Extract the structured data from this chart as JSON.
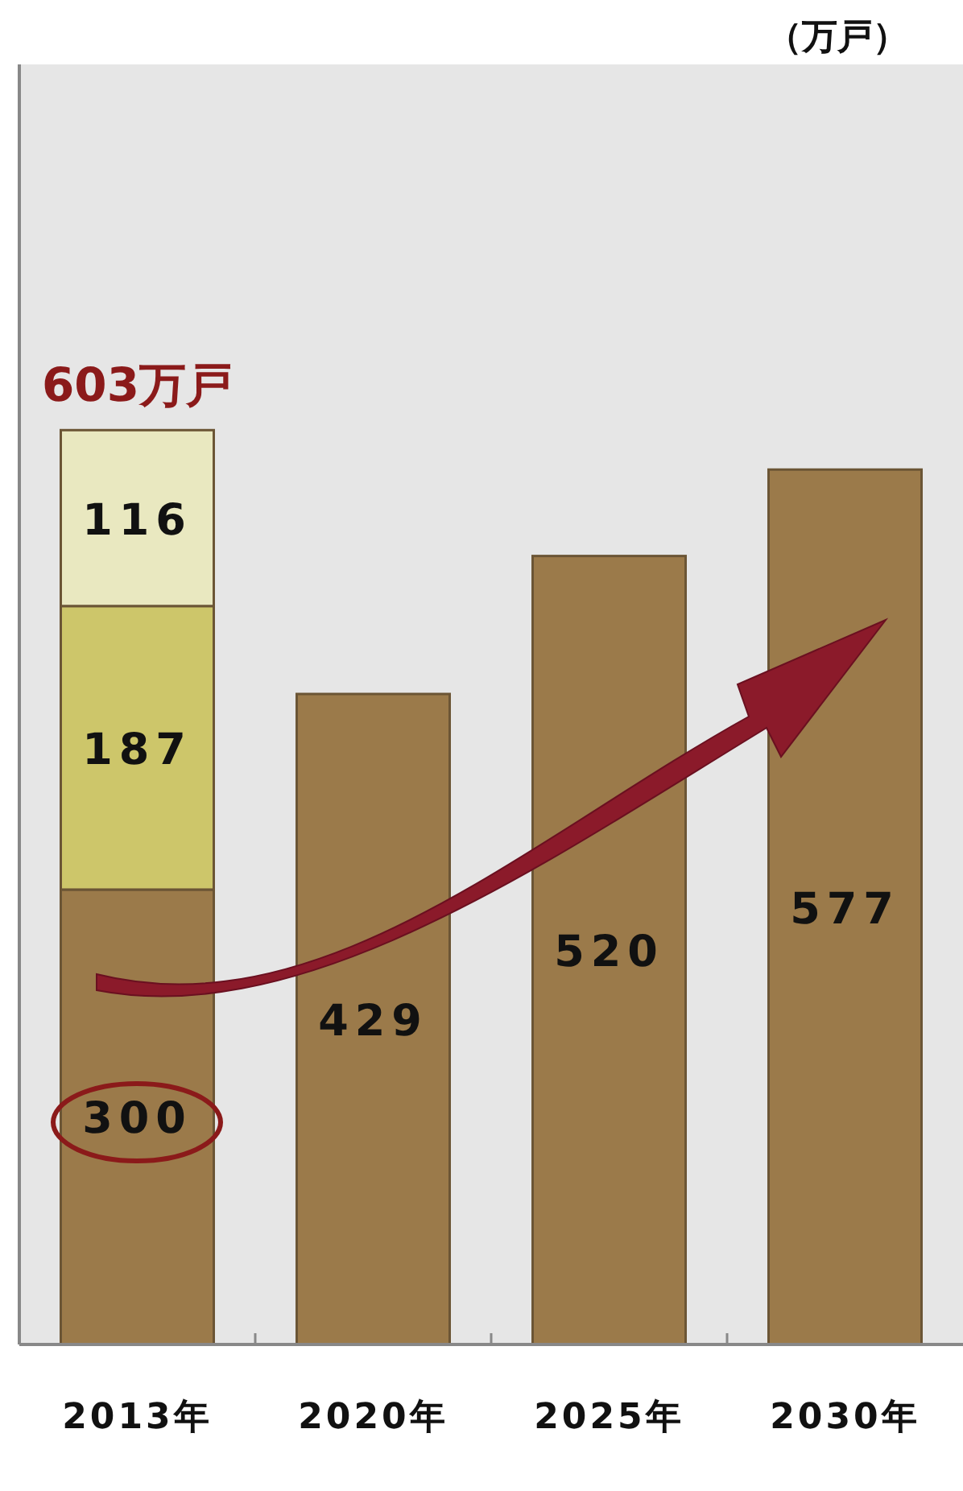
{
  "chart_data": {
    "type": "bar",
    "stacked": true,
    "annotations": [
      "（万戸）"
    ],
    "categories": [
      "2013年",
      "2020年",
      "2025年",
      "2030年"
    ],
    "series": [
      {
        "color": "#9b7a4a",
        "values": [
          300,
          429,
          520,
          577
        ]
      },
      {
        "color": "#cdc66a",
        "values": [
          187,
          null,
          null,
          null
        ]
      },
      {
        "color": "#e9e8c0",
        "values": [
          116,
          null,
          null,
          null
        ]
      }
    ],
    "data_labels": true,
    "totals": [
      "603万戸",
      null,
      null,
      null
    ]
  }
}
